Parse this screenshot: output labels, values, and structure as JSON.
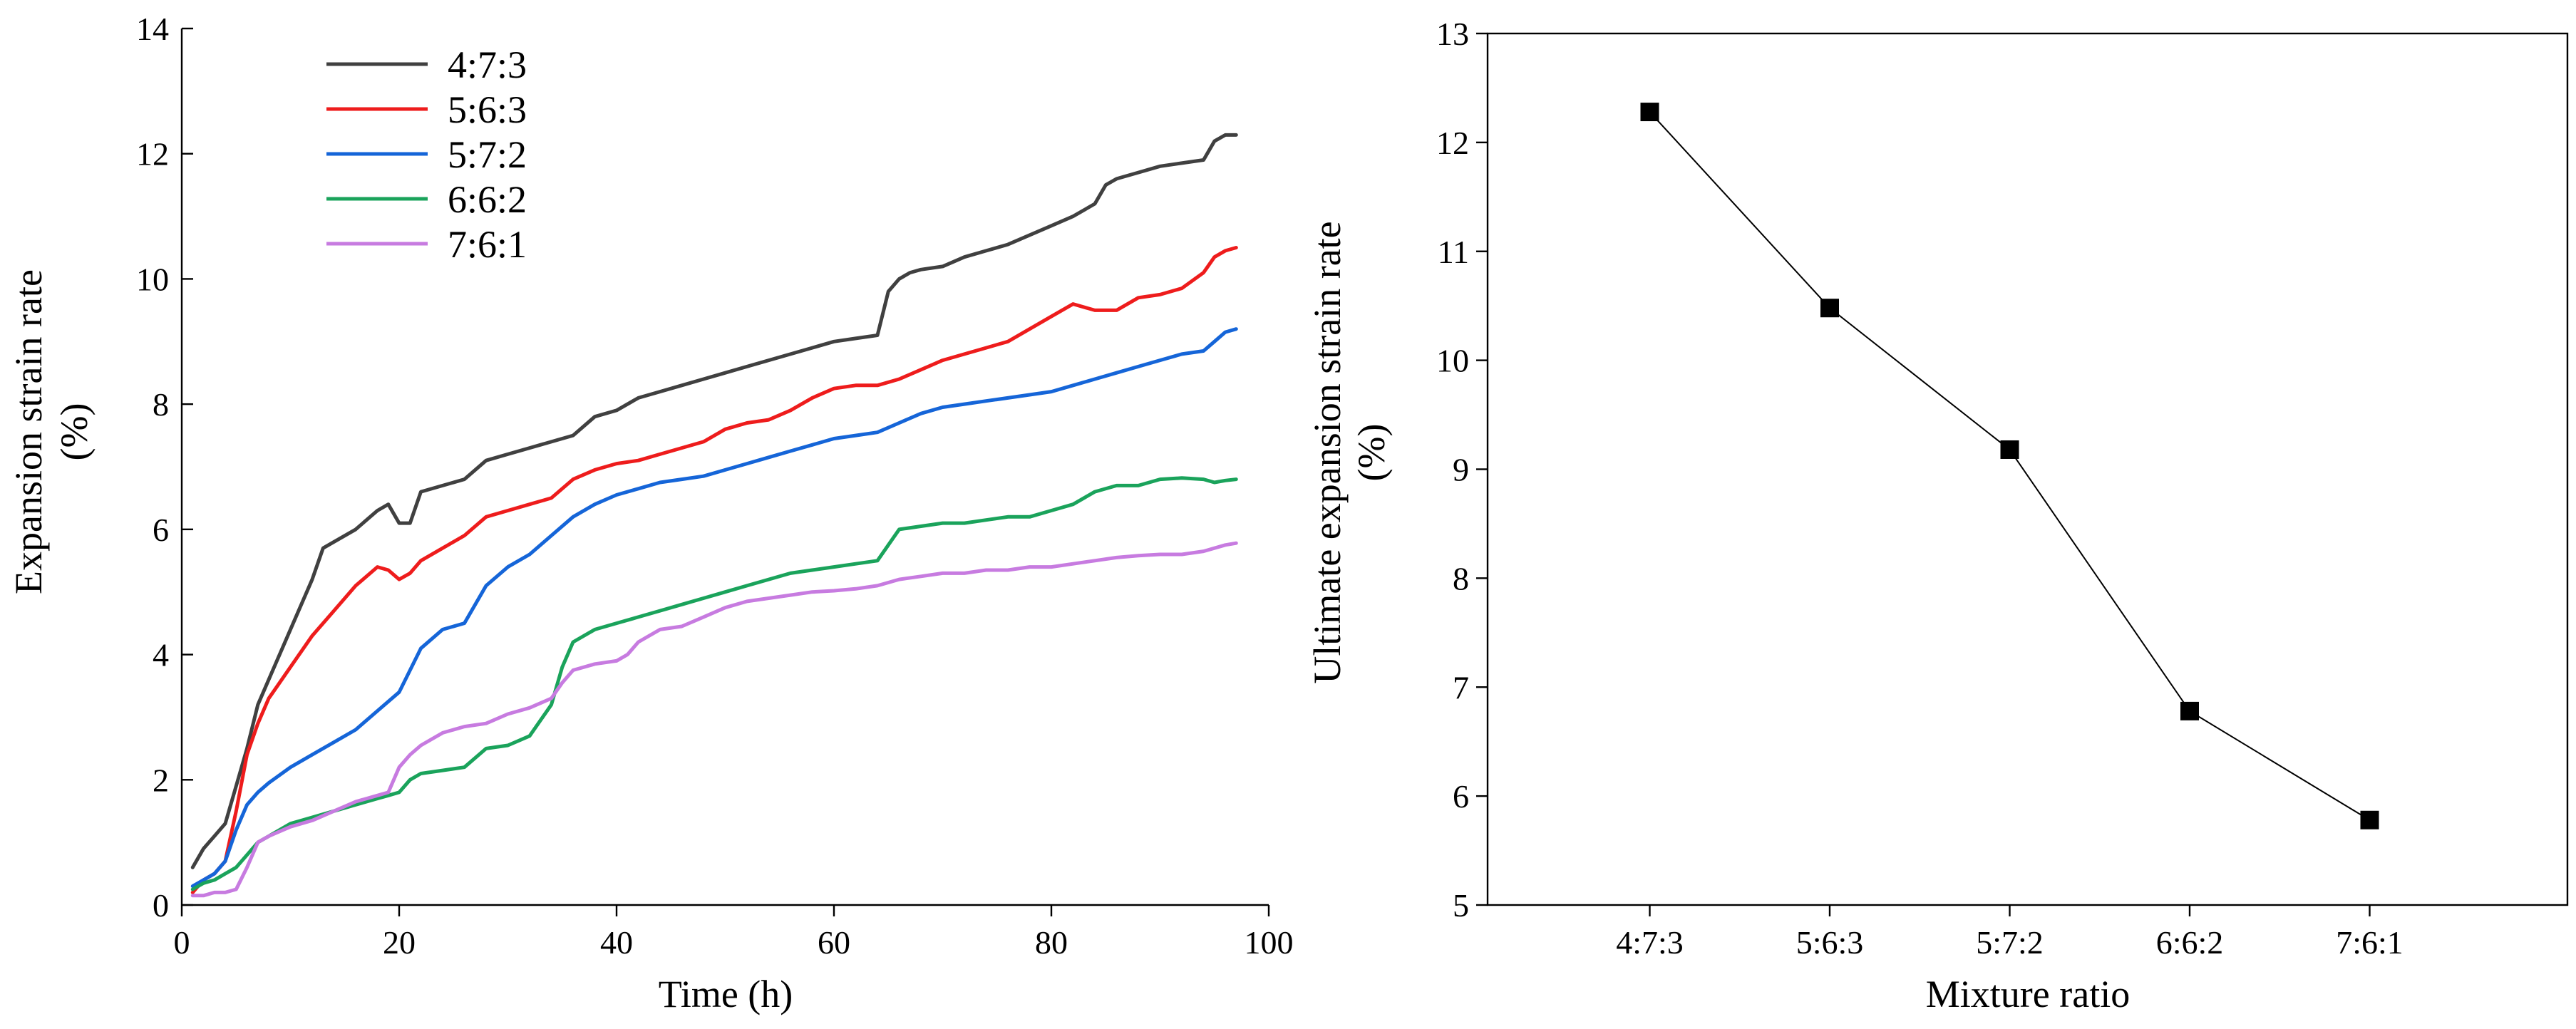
{
  "chart_data": [
    {
      "type": "line",
      "title": "",
      "xlabel": "Time (h)",
      "ylabel": "Expansion strain rate",
      "ylabel_unit": "(%)",
      "xlim": [
        0,
        100
      ],
      "ylim": [
        0,
        14
      ],
      "xticks": [
        0,
        20,
        40,
        60,
        80,
        100
      ],
      "yticks": [
        0,
        2,
        4,
        6,
        8,
        10,
        12,
        14
      ],
      "grid": false,
      "legend_position": "top-left",
      "series": [
        {
          "name": "4:7:3",
          "color": "#404040",
          "x": [
            1,
            2,
            3,
            4,
            5,
            6,
            7,
            8,
            10,
            12,
            13,
            14,
            16,
            18,
            19,
            20,
            21,
            22,
            24,
            26,
            28,
            30,
            32,
            34,
            36,
            38,
            40,
            42,
            44,
            46,
            48,
            50,
            52,
            54,
            56,
            58,
            60,
            62,
            64,
            65,
            66,
            67,
            68,
            70,
            72,
            74,
            76,
            78,
            80,
            82,
            84,
            85,
            86,
            88,
            90,
            92,
            94,
            95,
            96,
            97
          ],
          "y": [
            0.6,
            0.9,
            1.1,
            1.3,
            1.9,
            2.5,
            3.2,
            3.6,
            4.4,
            5.2,
            5.7,
            5.8,
            6.0,
            6.3,
            6.4,
            6.1,
            6.1,
            6.6,
            6.7,
            6.8,
            7.1,
            7.2,
            7.3,
            7.4,
            7.5,
            7.8,
            7.9,
            8.1,
            8.2,
            8.3,
            8.4,
            8.5,
            8.6,
            8.7,
            8.8,
            8.9,
            9.0,
            9.05,
            9.1,
            9.8,
            10.0,
            10.1,
            10.15,
            10.2,
            10.35,
            10.45,
            10.55,
            10.7,
            10.85,
            11.0,
            11.2,
            11.5,
            11.6,
            11.7,
            11.8,
            11.85,
            11.9,
            12.2,
            12.3,
            12.3
          ]
        },
        {
          "name": "5:6:3",
          "color": "#ee1c1c",
          "x": [
            1,
            2,
            3,
            4,
            5,
            6,
            7,
            8,
            10,
            12,
            14,
            16,
            18,
            19,
            20,
            21,
            22,
            24,
            26,
            28,
            30,
            32,
            34,
            36,
            38,
            40,
            42,
            44,
            46,
            48,
            50,
            52,
            54,
            56,
            58,
            60,
            62,
            64,
            66,
            68,
            70,
            72,
            74,
            76,
            78,
            80,
            82,
            84,
            86,
            88,
            90,
            92,
            94,
            95,
            96,
            97
          ],
          "y": [
            0.2,
            0.4,
            0.5,
            0.7,
            1.5,
            2.4,
            2.9,
            3.3,
            3.8,
            4.3,
            4.7,
            5.1,
            5.4,
            5.35,
            5.2,
            5.3,
            5.5,
            5.7,
            5.9,
            6.2,
            6.3,
            6.4,
            6.5,
            6.8,
            6.95,
            7.05,
            7.1,
            7.2,
            7.3,
            7.4,
            7.6,
            7.7,
            7.75,
            7.9,
            8.1,
            8.25,
            8.3,
            8.3,
            8.4,
            8.55,
            8.7,
            8.8,
            8.9,
            9.0,
            9.2,
            9.4,
            9.6,
            9.5,
            9.5,
            9.7,
            9.75,
            9.85,
            10.1,
            10.35,
            10.45,
            10.5
          ]
        },
        {
          "name": "5:7:2",
          "color": "#1565d8",
          "x": [
            1,
            2,
            3,
            4,
            5,
            6,
            7,
            8,
            10,
            12,
            14,
            16,
            18,
            20,
            22,
            24,
            26,
            28,
            30,
            32,
            34,
            36,
            38,
            40,
            42,
            44,
            46,
            48,
            50,
            52,
            54,
            56,
            58,
            60,
            62,
            64,
            66,
            68,
            70,
            72,
            74,
            76,
            78,
            80,
            82,
            84,
            86,
            88,
            90,
            92,
            94,
            95,
            96,
            97
          ],
          "y": [
            0.3,
            0.4,
            0.5,
            0.7,
            1.2,
            1.6,
            1.8,
            1.95,
            2.2,
            2.4,
            2.6,
            2.8,
            3.1,
            3.4,
            4.1,
            4.4,
            4.5,
            5.1,
            5.4,
            5.6,
            5.9,
            6.2,
            6.4,
            6.55,
            6.65,
            6.75,
            6.8,
            6.85,
            6.95,
            7.05,
            7.15,
            7.25,
            7.35,
            7.45,
            7.5,
            7.55,
            7.7,
            7.85,
            7.95,
            8.0,
            8.05,
            8.1,
            8.15,
            8.2,
            8.3,
            8.4,
            8.5,
            8.6,
            8.7,
            8.8,
            8.85,
            9.0,
            9.15,
            9.2
          ]
        },
        {
          "name": "6:6:2",
          "color": "#1aa35b",
          "x": [
            1,
            2,
            3,
            4,
            5,
            6,
            7,
            8,
            10,
            12,
            14,
            16,
            18,
            19,
            20,
            21,
            22,
            24,
            26,
            28,
            30,
            32,
            34,
            35,
            36,
            38,
            40,
            42,
            44,
            46,
            48,
            50,
            52,
            54,
            56,
            58,
            60,
            62,
            64,
            66,
            68,
            70,
            72,
            74,
            76,
            78,
            80,
            82,
            84,
            86,
            88,
            90,
            92,
            94,
            95,
            96,
            97
          ],
          "y": [
            0.25,
            0.35,
            0.4,
            0.5,
            0.6,
            0.8,
            1.0,
            1.1,
            1.3,
            1.4,
            1.5,
            1.6,
            1.7,
            1.75,
            1.8,
            2.0,
            2.1,
            2.15,
            2.2,
            2.5,
            2.55,
            2.7,
            3.2,
            3.8,
            4.2,
            4.4,
            4.5,
            4.6,
            4.7,
            4.8,
            4.9,
            5.0,
            5.1,
            5.2,
            5.3,
            5.35,
            5.4,
            5.45,
            5.5,
            6.0,
            6.05,
            6.1,
            6.1,
            6.15,
            6.2,
            6.2,
            6.3,
            6.4,
            6.6,
            6.7,
            6.7,
            6.8,
            6.82,
            6.8,
            6.75,
            6.78,
            6.8
          ]
        },
        {
          "name": "7:6:1",
          "color": "#c77be0",
          "x": [
            1,
            2,
            3,
            4,
            5,
            6,
            7,
            8,
            10,
            12,
            14,
            16,
            18,
            19,
            20,
            21,
            22,
            24,
            26,
            28,
            30,
            32,
            34,
            35,
            36,
            38,
            40,
            41,
            42,
            44,
            46,
            48,
            50,
            52,
            54,
            56,
            58,
            60,
            62,
            64,
            66,
            68,
            70,
            72,
            74,
            76,
            78,
            80,
            82,
            84,
            86,
            88,
            90,
            92,
            94,
            96,
            97
          ],
          "y": [
            0.15,
            0.15,
            0.2,
            0.2,
            0.25,
            0.6,
            1.0,
            1.1,
            1.25,
            1.35,
            1.5,
            1.65,
            1.75,
            1.8,
            2.2,
            2.4,
            2.55,
            2.75,
            2.85,
            2.9,
            3.05,
            3.15,
            3.3,
            3.55,
            3.75,
            3.85,
            3.9,
            4.0,
            4.2,
            4.4,
            4.45,
            4.6,
            4.75,
            4.85,
            4.9,
            4.95,
            5.0,
            5.02,
            5.05,
            5.1,
            5.2,
            5.25,
            5.3,
            5.3,
            5.35,
            5.35,
            5.4,
            5.4,
            5.45,
            5.5,
            5.55,
            5.58,
            5.6,
            5.6,
            5.65,
            5.75,
            5.78
          ]
        }
      ]
    },
    {
      "type": "line",
      "title": "",
      "xlabel": "Mixture ratio",
      "ylabel": "Ultimate expansion strain rate",
      "ylabel_unit": "(%)",
      "ylim": [
        5,
        13
      ],
      "yticks": [
        5,
        6,
        7,
        8,
        9,
        10,
        11,
        12,
        13
      ],
      "grid": false,
      "marker": "square",
      "color": "#000000",
      "categories": [
        "4:7:3",
        "5:6:3",
        "5:7:2",
        "6:6:2",
        "7:6:1"
      ],
      "values": [
        12.28,
        10.48,
        9.18,
        6.78,
        5.78
      ]
    }
  ]
}
